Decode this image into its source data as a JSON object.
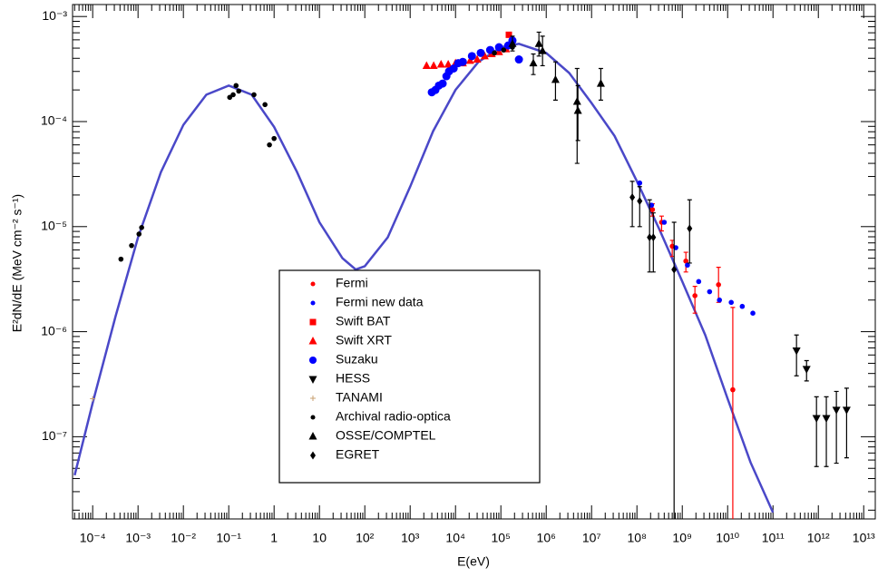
{
  "chart_data": {
    "type": "scatter",
    "x_label": "E(eV)",
    "y_label": "E²dN/dE (MeV cm⁻² s⁻¹)",
    "log_x": true,
    "log_y": true,
    "legend": "bottom",
    "xlim": [
      3.6e-05,
      18000000000000.0
    ],
    "ylim": [
      1.65e-08,
      0.0013
    ],
    "xticks": [
      {
        "value": 0.0001,
        "label": "10⁻⁴"
      },
      {
        "value": 0.001,
        "label": "10⁻³"
      },
      {
        "value": 0.01,
        "label": "10⁻²"
      },
      {
        "value": 0.1,
        "label": "10⁻¹"
      },
      1,
      10,
      {
        "value": 100,
        "label": "10²"
      },
      {
        "value": 1000.0,
        "label": "10³"
      },
      {
        "value": 10000.0,
        "label": "10⁴"
      },
      {
        "value": 100000.0,
        "label": "10⁵"
      },
      {
        "value": 1000000.0,
        "label": "10⁶"
      },
      {
        "value": 10000000.0,
        "label": "10⁷"
      },
      {
        "value": 100000000.0,
        "label": "10⁸"
      },
      {
        "value": 1000000000.0,
        "label": "10⁹"
      },
      {
        "value": 10000000000.0,
        "label": "10¹⁰"
      },
      {
        "value": 100000000000.0,
        "label": "10¹¹"
      },
      {
        "value": 1000000000000.0,
        "label": "10¹²"
      },
      {
        "value": 10000000000000.0,
        "label": "10¹³"
      }
    ],
    "yticks": [
      {
        "value": 1e-07,
        "label": "10⁻⁷"
      },
      {
        "value": 1e-06,
        "label": "10⁻⁶"
      },
      {
        "value": 1e-05,
        "label": "10⁻⁵"
      },
      {
        "value": 0.0001,
        "label": "10⁻⁴"
      },
      {
        "value": 0.001,
        "label": "10⁻³"
      }
    ],
    "model": {
      "color": "#4a48c8",
      "x": [
        4e-05,
        0.0001,
        0.00032,
        0.001,
        0.0032,
        0.01,
        0.032,
        0.1,
        0.32,
        1,
        3.2,
        10,
        32,
        63,
        100,
        320,
        1000,
        3200,
        10000.0,
        32000.0,
        100000.0,
        250000.0,
        1000000.0,
        3200000.0,
        10000000.0,
        32000000.0,
        100000000.0,
        320000000.0,
        1000000000.0,
        3200000000.0,
        10000000000.0,
        32000000000.0,
        100000000000.0
      ],
      "values": [
        4.3e-08,
        2.1e-07,
        1.4e-06,
        7.9e-06,
        3.3e-05,
        9.3e-05,
        0.00018,
        0.00022,
        0.00018,
        8.9e-05,
        3.3e-05,
        1.1e-05,
        5e-06,
        3.9e-06,
        4.2e-06,
        7.9e-06,
        2.4e-05,
        8.1e-05,
        0.0002,
        0.00037,
        0.00051,
        0.00055,
        0.00045,
        0.00029,
        0.00015,
        7.3e-05,
        2.7e-05,
        9.2e-06,
        3e-06,
        9.3e-07,
        2.3e-07,
        5.7e-08,
        1.9e-08
      ]
    },
    "series": [
      {
        "name": "Fermi",
        "color": "#ff0000",
        "marker": "dot",
        "x": [
          220000000.0,
          350000000.0,
          600000000.0,
          1200000000.0,
          1900000000.0,
          6300000000.0,
          13000000000.0
        ],
        "values": [
          1.45e-05,
          1.1e-05,
          6.5e-06,
          4.7e-06,
          2.2e-06,
          2.8e-06,
          2.8e-07
        ],
        "y_low": [
          1.26e-05,
          9.1e-06,
          5.2e-06,
          3.7e-06,
          1.5e-06,
          1.9e-06,
          1e-08
        ],
        "y_high": [
          1.65e-05,
          1.26e-05,
          7.4e-06,
          5.7e-06,
          2.7e-06,
          4.1e-06,
          1.7e-06
        ]
      },
      {
        "name": "Fermi new data",
        "color": "#0000ff",
        "marker": "dot",
        "x": [
          115000000.0,
          210000000.0,
          400000000.0,
          720000000.0,
          1300000000.0,
          2300000000.0,
          4000000000.0,
          6600000000.0,
          12000000000.0,
          21000000000.0,
          36000000000.0
        ],
        "values": [
          2.6e-05,
          1.6e-05,
          1.1e-05,
          6.3e-06,
          4.3e-06,
          3e-06,
          2.4e-06,
          2e-06,
          1.9e-06,
          1.74e-06,
          1.5e-06
        ]
      },
      {
        "name": "Swift BAT",
        "color": "#ff0000",
        "marker": "square",
        "x": [
          150000.0
        ],
        "values": [
          0.00067
        ]
      },
      {
        "name": "Swift XRT",
        "color": "#ff0000",
        "marker": "triangle",
        "x": [
          2300.0,
          3300.0,
          4800.0,
          6900.0,
          10000.0,
          14500.0,
          21000.0,
          30000.0,
          44000.0,
          63000.0,
          91000.0,
          130000.0
        ],
        "values": [
          0.00034,
          0.00034,
          0.00035,
          0.00035,
          0.00036,
          0.00036,
          0.00038,
          0.00039,
          0.00042,
          0.00044,
          0.00046,
          0.00049
        ]
      },
      {
        "name": "Suzaku",
        "color": "#0000ff",
        "marker": "circle",
        "x": [
          3000.0,
          3600.0,
          4300.0,
          5200.0,
          6300.0,
          7200.0,
          9100.0,
          11500.0,
          14500.0,
          23000.0,
          36000.0,
          58000.0,
          91000.0,
          145000.0,
          180000.0,
          250000.0
        ],
        "values": [
          0.00019,
          0.0002,
          0.00022,
          0.00023,
          0.00027,
          0.0003,
          0.00032,
          0.00036,
          0.00037,
          0.00042,
          0.00045,
          0.00048,
          0.00051,
          0.00053,
          0.00059,
          0.00039
        ]
      },
      {
        "name": "HESS",
        "color": "#000000",
        "marker": "triangle-down",
        "x": [
          330000000000.0,
          550000000000.0,
          910000000000.0,
          1500000000000.0,
          2500000000000.0,
          4200000000000.0
        ],
        "values": [
          6.6e-07,
          4.4e-07,
          1.5e-07,
          1.5e-07,
          1.8e-07,
          1.8e-07
        ],
        "y_low": [
          3.8e-07,
          3.4e-07,
          5.2e-08,
          5.2e-08,
          5.6e-08,
          6.3e-08
        ],
        "y_high": [
          9.3e-07,
          5.3e-07,
          2.4e-07,
          2.4e-07,
          2.7e-07,
          2.9e-07
        ]
      },
      {
        "name": "TANAMI",
        "color": "#c8a070",
        "marker": "plus",
        "x": [
          0.0001
        ],
        "values": [
          2.3e-07
        ]
      },
      {
        "name": "Archival radio-optica",
        "color": "#000000",
        "marker": "dot",
        "x": [
          0.00042,
          0.00072,
          0.00105,
          0.0012,
          0.105,
          0.125,
          0.145,
          0.166,
          0.36,
          0.63,
          0.79,
          1.0,
          72000.0,
          115000.0,
          180000.0
        ],
        "values": [
          4.9e-06,
          6.6e-06,
          8.5e-06,
          9.8e-06,
          0.00017,
          0.00018,
          0.00022,
          0.000195,
          0.00018,
          0.000145,
          6e-05,
          6.9e-05,
          0.00045,
          0.00048,
          0.00051
        ]
      },
      {
        "name": "OSSE/COMPTEL",
        "color": "#000000",
        "marker": "triangle",
        "x": [
          180000.0,
          520000.0,
          690000.0,
          830000.0,
          1600000.0,
          4800000.0,
          5000000.0,
          16000000.0
        ],
        "values": [
          0.00055,
          0.00036,
          0.00055,
          0.00047,
          0.00025,
          0.000155,
          0.000127,
          0.00023
        ],
        "y_low": [
          0.00047,
          0.00028,
          0.00042,
          0.00034,
          0.00016,
          4e-05,
          6.6e-05,
          0.00016
        ],
        "y_high": [
          0.00065,
          0.00044,
          0.00071,
          0.00065,
          0.00037,
          0.00032,
          0.00022,
          0.00032
        ]
      },
      {
        "name": "EGRET",
        "color": "#000000",
        "marker": "diamond",
        "x": [
          79000000.0,
          115000000.0,
          190000000.0,
          230000000.0,
          660000000.0,
          1450000000.0
        ],
        "values": [
          1.9e-05,
          1.75e-05,
          7.9e-06,
          7.9e-06,
          3.9e-06,
          9.6e-06
        ],
        "y_low": [
          1e-05,
          1e-05,
          3.7e-06,
          3.7e-06,
          1e-08,
          4.5e-06
        ],
        "y_high": [
          2.7e-05,
          2.4e-05,
          1.8e-05,
          1.35e-05,
          1.1e-05,
          1.8e-05
        ]
      }
    ]
  }
}
